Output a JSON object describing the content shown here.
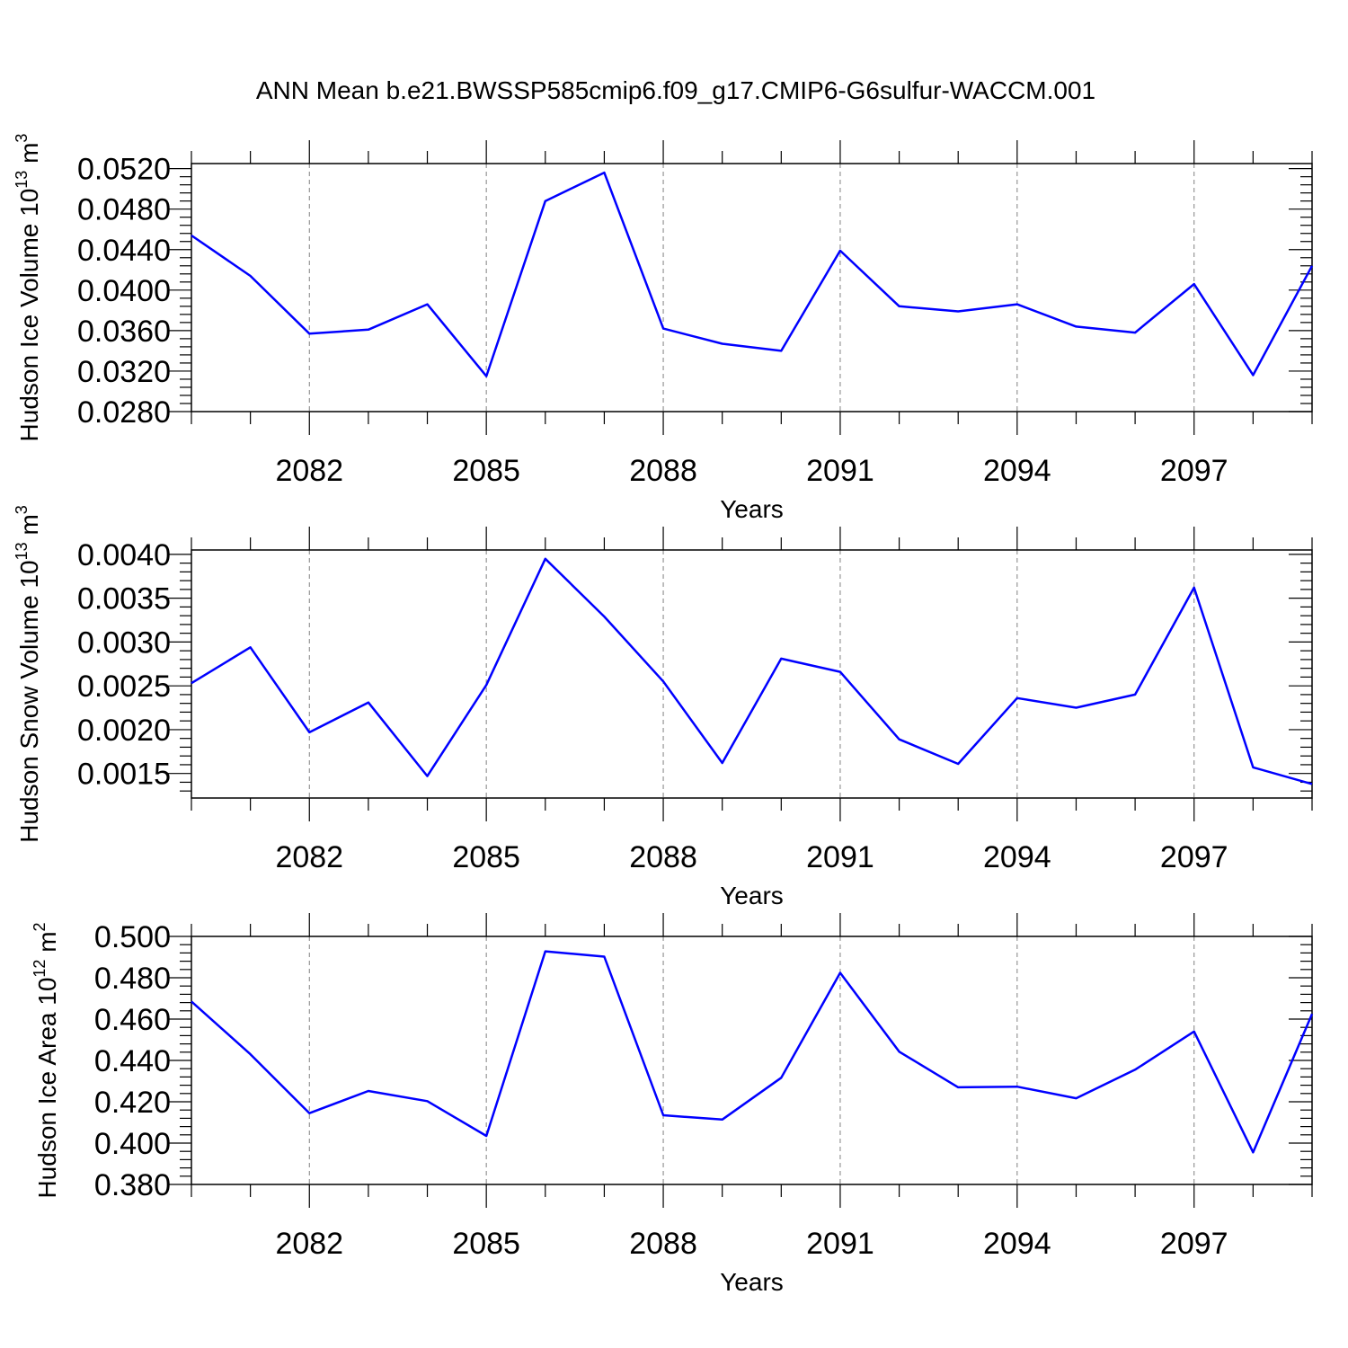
{
  "title": "ANN Mean b.e21.BWSSP585cmip6.f09_g17.CMIP6-G6sulfur-WACCM.001",
  "colors": {
    "line": "#0000ff",
    "axis": "#000000",
    "grid": "#808080"
  },
  "chart_data": [
    {
      "type": "line",
      "xlabel": "Years",
      "ylabel": {
        "main": "Hudson Ice Volume 10",
        "sup": "13",
        "unit": " m",
        "unit_sup": "3"
      },
      "xlim": [
        2080,
        2099
      ],
      "ylim": [
        0.028,
        0.0525
      ],
      "yticks": [
        0.028,
        0.032,
        0.036,
        0.04,
        0.044,
        0.048,
        0.052
      ],
      "ytick_labels": [
        "0.0280",
        "0.0320",
        "0.0360",
        "0.0400",
        "0.0440",
        "0.0480",
        "0.0520"
      ],
      "xticks": [
        2082,
        2085,
        2088,
        2091,
        2094,
        2097
      ],
      "xtick_labels": [
        "2082",
        "2085",
        "2088",
        "2091",
        "2094",
        "2097"
      ],
      "grid": "vertical-dashed",
      "series": [
        {
          "x": [
            2080,
            2081,
            2082,
            2083,
            2084,
            2085,
            2086,
            2087,
            2088,
            2089,
            2090,
            2091,
            2092,
            2093,
            2094,
            2095,
            2096,
            2097,
            2098,
            2099
          ],
          "values": [
            0.0454,
            0.0414,
            0.0357,
            0.0361,
            0.0386,
            0.0315,
            0.0488,
            0.0516,
            0.0362,
            0.0347,
            0.034,
            0.0439,
            0.0384,
            0.0379,
            0.0386,
            0.0364,
            0.0358,
            0.0406,
            0.0316,
            0.0424
          ]
        }
      ]
    },
    {
      "type": "line",
      "xlabel": "Years",
      "ylabel": {
        "main": "Hudson Snow Volume 10",
        "sup": "13",
        "unit": " m",
        "unit_sup": "3"
      },
      "xlim": [
        2080,
        2099
      ],
      "ylim": [
        0.00122,
        0.00405
      ],
      "yticks": [
        0.0015,
        0.002,
        0.0025,
        0.003,
        0.0035,
        0.004
      ],
      "ytick_labels": [
        "0.0015",
        "0.0020",
        "0.0025",
        "0.0030",
        "0.0035",
        "0.0040"
      ],
      "xticks": [
        2082,
        2085,
        2088,
        2091,
        2094,
        2097
      ],
      "xtick_labels": [
        "2082",
        "2085",
        "2088",
        "2091",
        "2094",
        "2097"
      ],
      "grid": "vertical-dashed",
      "series": [
        {
          "x": [
            2080,
            2081,
            2082,
            2083,
            2084,
            2085,
            2086,
            2087,
            2088,
            2089,
            2090,
            2091,
            2092,
            2093,
            2094,
            2095,
            2096,
            2097,
            2098,
            2099
          ],
          "values": [
            0.00253,
            0.00294,
            0.00197,
            0.00231,
            0.00147,
            0.00251,
            0.00395,
            0.00329,
            0.00255,
            0.00162,
            0.00281,
            0.00266,
            0.00189,
            0.00161,
            0.00236,
            0.00225,
            0.0024,
            0.00362,
            0.00157,
            0.00138
          ]
        }
      ]
    },
    {
      "type": "line",
      "xlabel": "Years",
      "ylabel": {
        "main": "Hudson Ice Area 10",
        "sup": "12",
        "unit": " m",
        "unit_sup": "2"
      },
      "xlim": [
        2080,
        2099
      ],
      "ylim": [
        0.38,
        0.5
      ],
      "yticks": [
        0.38,
        0.4,
        0.42,
        0.44,
        0.46,
        0.48,
        0.5
      ],
      "ytick_labels": [
        "0.380",
        "0.400",
        "0.420",
        "0.440",
        "0.460",
        "0.480",
        "0.500"
      ],
      "xticks": [
        2082,
        2085,
        2088,
        2091,
        2094,
        2097
      ],
      "xtick_labels": [
        "2082",
        "2085",
        "2088",
        "2091",
        "2094",
        "2097"
      ],
      "grid": "vertical-dashed",
      "series": [
        {
          "x": [
            2080,
            2081,
            2082,
            2083,
            2084,
            2085,
            2086,
            2087,
            2088,
            2089,
            2090,
            2091,
            2092,
            2093,
            2094,
            2095,
            2096,
            2097,
            2098,
            2099
          ],
          "values": [
            0.4685,
            0.443,
            0.4145,
            0.4252,
            0.4203,
            0.4035,
            0.4928,
            0.4902,
            0.4135,
            0.4114,
            0.4316,
            0.4824,
            0.4442,
            0.427,
            0.4273,
            0.4217,
            0.4355,
            0.454,
            0.3955,
            0.4625
          ]
        }
      ]
    }
  ]
}
